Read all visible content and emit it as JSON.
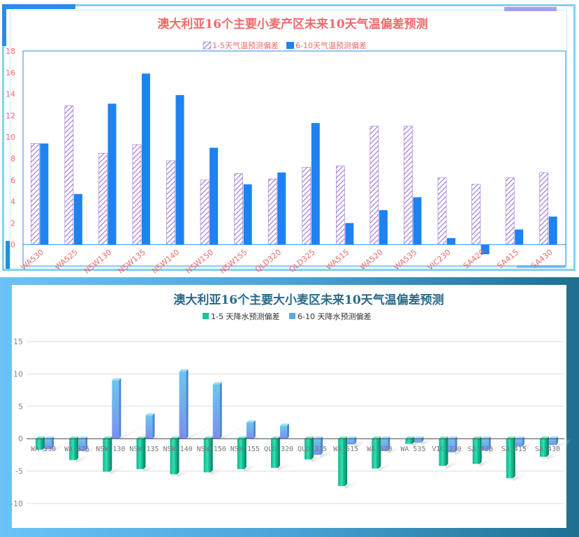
{
  "chart_data": [
    {
      "type": "bar",
      "title": "澳大利亚16个主要小麦产区未来10天气温偏差预测",
      "categories": [
        "WA530",
        "WA525",
        "NSW130",
        "NSW135",
        "NSW140",
        "NSW150",
        "NSW155",
        "QLD320",
        "QLD325",
        "WA515",
        "WA520",
        "WA535",
        "VIC230",
        "SA420",
        "SA415",
        "SA430"
      ],
      "series": [
        {
          "name": "1-5天气温预测偏差",
          "values": [
            9.4,
            12.9,
            8.5,
            9.3,
            7.8,
            6.0,
            6.6,
            6.1,
            7.2,
            7.3,
            11.0,
            11.0,
            6.2,
            5.6,
            6.2,
            6.7
          ],
          "color": "#9a6fd6",
          "pattern": "diagonal-hatch"
        },
        {
          "name": "6-10天气温预测偏差",
          "values": [
            9.4,
            4.7,
            13.1,
            15.9,
            13.9,
            9.0,
            5.6,
            6.7,
            11.3,
            2.0,
            3.2,
            4.4,
            0.6,
            -0.9,
            1.4,
            2.6
          ],
          "color": "#1e82f0"
        }
      ],
      "ylim": [
        -2,
        18
      ],
      "yticks": [
        0,
        2,
        4,
        6,
        8,
        10,
        12,
        14,
        16,
        18
      ],
      "legend": "top",
      "grid": false
    },
    {
      "type": "bar",
      "title": "澳大利亚16个主要大小麦区未来10天气温偏差预测",
      "categories": [
        "WA 530",
        "WA 525",
        "NSW 130",
        "NSW 135",
        "NSW 140",
        "NSW 150",
        "NSW 155",
        "QLD 320",
        "QLD 325",
        "WA 515",
        "WA 520",
        "WA 535",
        "VIC 230",
        "SA 420",
        "SA 415",
        "SA 430"
      ],
      "series": [
        {
          "name": "1-5 天降水预测偏差",
          "values": [
            -1.7,
            -3.3,
            -5.1,
            -4.7,
            -5.5,
            -5.2,
            -4.7,
            -4.5,
            -3.2,
            -7.3,
            -4.6,
            -0.8,
            -4.2,
            -3.9,
            -6.1,
            -2.8
          ],
          "color": "#17c39a"
        },
        {
          "name": "6-10 天降水预测偏差",
          "values": [
            -1.6,
            -1.9,
            9.0,
            3.6,
            10.4,
            8.4,
            2.5,
            2.0,
            -2.5,
            -0.9,
            -1.9,
            -0.6,
            -2.1,
            -1.8,
            -1.2,
            -1.0
          ],
          "color": "#5aa8e8"
        }
      ],
      "ylim": [
        -10,
        15
      ],
      "yticks": [
        -10,
        -5,
        0,
        5,
        10,
        15
      ],
      "legend": "top",
      "grid": true
    }
  ]
}
